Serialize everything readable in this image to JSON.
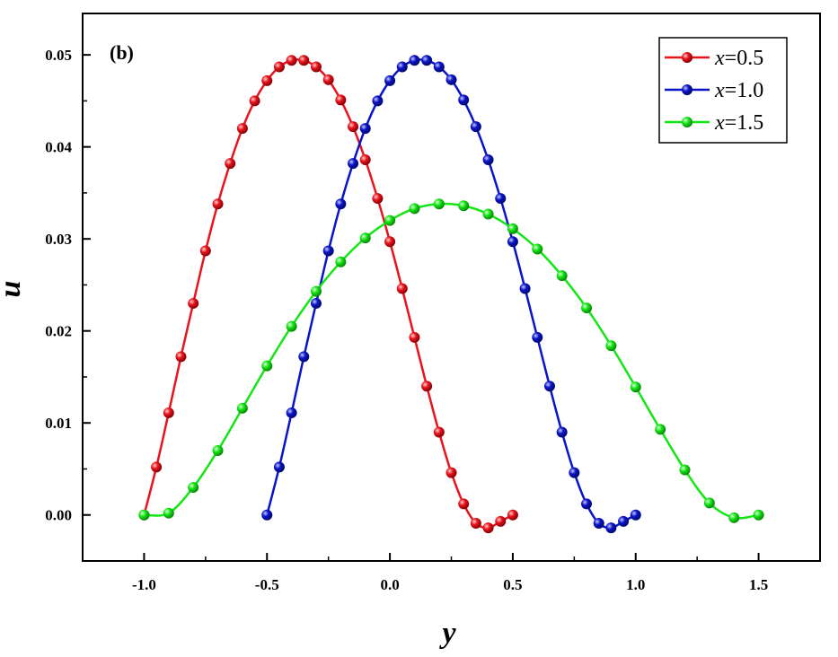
{
  "chart_data": {
    "type": "line",
    "panel_label": "(b)",
    "xlabel": "y",
    "ylabel": "u",
    "xlim": [
      -1.25,
      1.75
    ],
    "ylim": [
      -0.005,
      0.0545
    ],
    "x_ticks": [
      -1.0,
      -0.5,
      0.0,
      0.5,
      1.0,
      1.5
    ],
    "x_tick_labels": [
      "-1.0",
      "-0.5",
      "0.0",
      "0.5",
      "1.0",
      "1.5"
    ],
    "y_ticks": [
      0.0,
      0.01,
      0.02,
      0.03,
      0.04,
      0.05
    ],
    "y_tick_labels": [
      "0.00",
      "0.01",
      "0.02",
      "0.03",
      "0.04",
      "0.05"
    ],
    "legend_position": "top-right",
    "series": [
      {
        "name": "x=0.5",
        "legend_var": "x",
        "legend_rest": "=0.5",
        "color": "#e8141c",
        "x": [
          -1.0,
          -0.95,
          -0.9,
          -0.85,
          -0.8,
          -0.75,
          -0.7,
          -0.65,
          -0.6,
          -0.55,
          -0.5,
          -0.45,
          -0.4,
          -0.35,
          -0.3,
          -0.25,
          -0.2,
          -0.15,
          -0.1,
          -0.05,
          0.0,
          0.05,
          0.1,
          0.15,
          0.2,
          0.25,
          0.3,
          0.35,
          0.4,
          0.45,
          0.5
        ],
        "y": [
          0.0,
          0.0052,
          0.0111,
          0.0172,
          0.023,
          0.0287,
          0.0338,
          0.0382,
          0.042,
          0.045,
          0.0472,
          0.0487,
          0.0494,
          0.0494,
          0.0487,
          0.0473,
          0.0451,
          0.0422,
          0.0386,
          0.0344,
          0.0297,
          0.0246,
          0.0193,
          0.014,
          0.009,
          0.0046,
          0.0012,
          -0.0009,
          -0.0014,
          -0.0007,
          0.0
        ]
      },
      {
        "name": "x=1.0",
        "legend_var": "x",
        "legend_rest": "=1.0",
        "color": "#0a14c8",
        "x": [
          -0.5,
          -0.45,
          -0.4,
          -0.35,
          -0.3,
          -0.25,
          -0.2,
          -0.15,
          -0.1,
          -0.05,
          0.0,
          0.05,
          0.1,
          0.15,
          0.2,
          0.25,
          0.3,
          0.35,
          0.4,
          0.45,
          0.5,
          0.55,
          0.6,
          0.65,
          0.7,
          0.75,
          0.8,
          0.85,
          0.9,
          0.95,
          1.0
        ],
        "y": [
          0.0,
          0.0052,
          0.0111,
          0.0172,
          0.023,
          0.0287,
          0.0338,
          0.0382,
          0.042,
          0.045,
          0.0472,
          0.0487,
          0.0494,
          0.0494,
          0.0487,
          0.0473,
          0.0451,
          0.0422,
          0.0386,
          0.0344,
          0.0297,
          0.0246,
          0.0193,
          0.014,
          0.009,
          0.0046,
          0.0012,
          -0.0009,
          -0.0014,
          -0.0007,
          0.0
        ]
      },
      {
        "name": "x=1.5",
        "legend_var": "x",
        "legend_rest": "=1.5",
        "color": "#14e614",
        "x": [
          -1.0,
          -0.9,
          -0.8,
          -0.7,
          -0.6,
          -0.5,
          -0.4,
          -0.3,
          -0.2,
          -0.1,
          0.0,
          0.1,
          0.2,
          0.3,
          0.4,
          0.5,
          0.6,
          0.7,
          0.8,
          0.9,
          1.0,
          1.1,
          1.2,
          1.3,
          1.4,
          1.5
        ],
        "y": [
          0.0,
          0.0002,
          0.003,
          0.007,
          0.0116,
          0.0162,
          0.0205,
          0.0243,
          0.0275,
          0.0301,
          0.032,
          0.0333,
          0.0338,
          0.0336,
          0.0327,
          0.0311,
          0.0289,
          0.026,
          0.0225,
          0.0184,
          0.0139,
          0.0093,
          0.0049,
          0.0013,
          -0.0003,
          0.0
        ]
      }
    ]
  }
}
